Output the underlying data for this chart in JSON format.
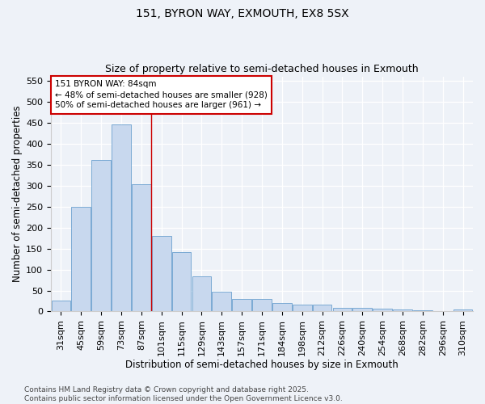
{
  "title1": "151, BYRON WAY, EXMOUTH, EX8 5SX",
  "title2": "Size of property relative to semi-detached houses in Exmouth",
  "xlabel": "Distribution of semi-detached houses by size in Exmouth",
  "ylabel": "Number of semi-detached properties",
  "categories": [
    "31sqm",
    "45sqm",
    "59sqm",
    "73sqm",
    "87sqm",
    "101sqm",
    "115sqm",
    "129sqm",
    "143sqm",
    "157sqm",
    "171sqm",
    "184sqm",
    "198sqm",
    "212sqm",
    "226sqm",
    "240sqm",
    "254sqm",
    "268sqm",
    "282sqm",
    "296sqm",
    "310sqm"
  ],
  "values": [
    25,
    250,
    360,
    445,
    303,
    180,
    141,
    84,
    47,
    29,
    29,
    20,
    17,
    17,
    9,
    9,
    7,
    5,
    2,
    1,
    5
  ],
  "bar_color": "#c8d8ee",
  "bar_edge_color": "#7baad4",
  "vline_x_index": 4,
  "vline_color": "#cc0000",
  "annotation_line1": "151 BYRON WAY: 84sqm",
  "annotation_line2": "← 48% of semi-detached houses are smaller (928)",
  "annotation_line3": "50% of semi-detached houses are larger (961) →",
  "annotation_box_color": "#ffffff",
  "annotation_box_edgecolor": "#cc0000",
  "ylim": [
    0,
    560
  ],
  "yticks": [
    0,
    50,
    100,
    150,
    200,
    250,
    300,
    350,
    400,
    450,
    500,
    550
  ],
  "background_color": "#eef2f8",
  "plot_bg_color": "#eef2f8",
  "grid_color": "#ffffff",
  "footer_line1": "Contains HM Land Registry data © Crown copyright and database right 2025.",
  "footer_line2": "Contains public sector information licensed under the Open Government Licence v3.0.",
  "title1_fontsize": 10,
  "title2_fontsize": 9,
  "xlabel_fontsize": 8.5,
  "ylabel_fontsize": 8.5,
  "tick_fontsize": 8,
  "annotation_fontsize": 7.5,
  "footer_fontsize": 6.5
}
